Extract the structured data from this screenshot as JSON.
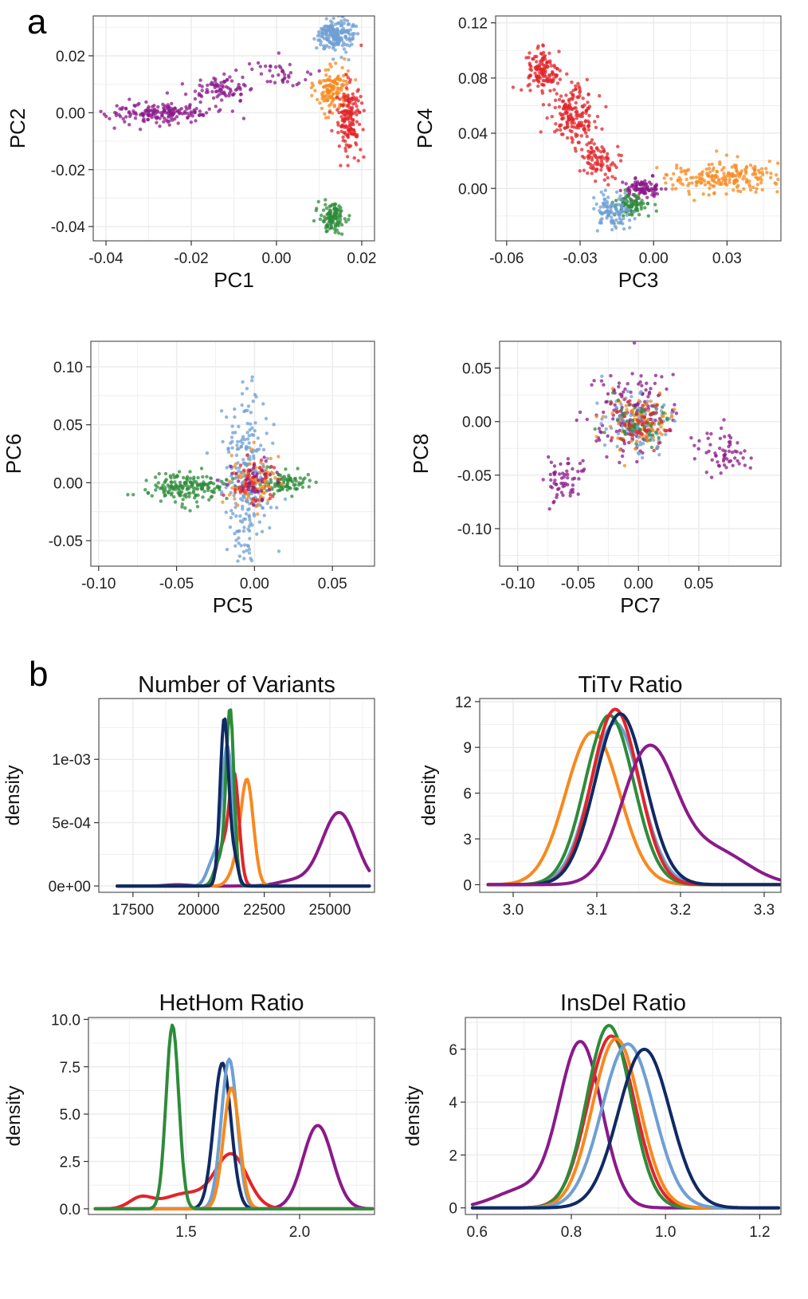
{
  "figure": {
    "panel_a_label": "a",
    "panel_b_label": "b"
  },
  "colors": {
    "purple": "#8b1a89",
    "red": "#e2242a",
    "orange": "#f7891f",
    "green": "#2e8b3a",
    "lightblue": "#6f9fd3",
    "navy": "#0f2a64",
    "grid": "#ececec",
    "panel_border": "#555555"
  },
  "chart_data": [
    {
      "id": "pc12",
      "type": "scatter",
      "title": "",
      "xlabel": "PC1",
      "ylabel": "PC2",
      "xlim": [
        -0.043,
        0.023
      ],
      "ylim": [
        -0.045,
        0.034
      ],
      "xticks": [
        -0.04,
        -0.02,
        0.0,
        0.02
      ],
      "xtick_labels": [
        "-0.04",
        "-0.02",
        "0.00",
        "0.02"
      ],
      "yticks": [
        -0.04,
        -0.02,
        0.0,
        0.02
      ],
      "ytick_labels": [
        "-0.04",
        "-0.02",
        "0.00",
        "0.02"
      ],
      "clusters": [
        {
          "color": "purple",
          "cx": -0.027,
          "cy": 0.0,
          "sx": 0.006,
          "sy": 0.002,
          "n": 180
        },
        {
          "color": "purple",
          "cx": -0.013,
          "cy": 0.008,
          "sx": 0.004,
          "sy": 0.002,
          "n": 80
        },
        {
          "color": "purple",
          "cx": 0.0,
          "cy": 0.013,
          "sx": 0.004,
          "sy": 0.003,
          "n": 40
        },
        {
          "color": "lightblue",
          "cx": 0.014,
          "cy": 0.027,
          "sx": 0.002,
          "sy": 0.003,
          "n": 200
        },
        {
          "color": "orange",
          "cx": 0.013,
          "cy": 0.008,
          "sx": 0.002,
          "sy": 0.004,
          "n": 130
        },
        {
          "color": "red",
          "cx": 0.017,
          "cy": -0.002,
          "sx": 0.0015,
          "sy": 0.006,
          "n": 160
        },
        {
          "color": "green",
          "cx": 0.013,
          "cy": -0.037,
          "sx": 0.0015,
          "sy": 0.0025,
          "n": 120
        }
      ]
    },
    {
      "id": "pc34",
      "type": "scatter",
      "title": "",
      "xlabel": "PC3",
      "ylabel": "PC4",
      "xlim": [
        -0.0645,
        0.052
      ],
      "ylim": [
        -0.038,
        0.125
      ],
      "xticks": [
        -0.06,
        -0.03,
        0.0,
        0.03
      ],
      "xtick_labels": [
        "-0.06",
        "-0.03",
        "0.00",
        "0.03"
      ],
      "yticks": [
        0.0,
        0.04,
        0.08,
        0.12
      ],
      "ytick_labels": [
        "0.00",
        "0.04",
        "0.08",
        "0.12"
      ],
      "clusters": [
        {
          "color": "red",
          "cx": -0.045,
          "cy": 0.085,
          "sx": 0.004,
          "sy": 0.008,
          "n": 130
        },
        {
          "color": "red",
          "cx": -0.033,
          "cy": 0.055,
          "sx": 0.004,
          "sy": 0.01,
          "n": 170
        },
        {
          "color": "red",
          "cx": -0.022,
          "cy": 0.02,
          "sx": 0.004,
          "sy": 0.008,
          "n": 90
        },
        {
          "color": "orange",
          "cx": 0.028,
          "cy": 0.008,
          "sx": 0.011,
          "sy": 0.005,
          "n": 200
        },
        {
          "color": "purple",
          "cx": -0.005,
          "cy": 0.0,
          "sx": 0.004,
          "sy": 0.003,
          "n": 100
        },
        {
          "color": "green",
          "cx": -0.01,
          "cy": -0.012,
          "sx": 0.004,
          "sy": 0.004,
          "n": 90
        },
        {
          "color": "lightblue",
          "cx": -0.016,
          "cy": -0.018,
          "sx": 0.004,
          "sy": 0.006,
          "n": 110
        }
      ]
    },
    {
      "id": "pc56",
      "type": "scatter",
      "title": "",
      "xlabel": "PC5",
      "ylabel": "PC6",
      "xlim": [
        -0.105,
        0.077
      ],
      "ylim": [
        -0.072,
        0.122
      ],
      "xticks": [
        -0.1,
        -0.05,
        0.0,
        0.05
      ],
      "xtick_labels": [
        "-0.10",
        "-0.05",
        "0.00",
        "0.05"
      ],
      "yticks": [
        -0.05,
        0.0,
        0.05,
        0.1
      ],
      "ytick_labels": [
        "-0.05",
        "0.00",
        "0.05",
        "0.10"
      ],
      "clusters": [
        {
          "color": "lightblue",
          "cx": -0.005,
          "cy": 0.0,
          "sx": 0.008,
          "sy": 0.035,
          "n": 260
        },
        {
          "color": "green",
          "cx": -0.045,
          "cy": -0.004,
          "sx": 0.012,
          "sy": 0.006,
          "n": 170
        },
        {
          "color": "green",
          "cx": 0.02,
          "cy": 0.0,
          "sx": 0.008,
          "sy": 0.005,
          "n": 90
        },
        {
          "color": "orange",
          "cx": 0.0,
          "cy": 0.0,
          "sx": 0.009,
          "sy": 0.012,
          "n": 90
        },
        {
          "color": "red",
          "cx": 0.0,
          "cy": 0.0,
          "sx": 0.008,
          "sy": 0.01,
          "n": 50
        },
        {
          "color": "purple",
          "cx": 0.0,
          "cy": 0.0,
          "sx": 0.008,
          "sy": 0.01,
          "n": 40
        }
      ]
    },
    {
      "id": "pc78",
      "type": "scatter",
      "title": "",
      "xlabel": "PC7",
      "ylabel": "PC8",
      "xlim": [
        -0.115,
        0.118
      ],
      "ylim": [
        -0.135,
        0.075
      ],
      "xticks": [
        -0.1,
        -0.05,
        0.0,
        0.05
      ],
      "xtick_labels": [
        "-0.10",
        "-0.05",
        "0.00",
        "0.05"
      ],
      "yticks": [
        -0.1,
        -0.05,
        0.0,
        0.05
      ],
      "ytick_labels": [
        "-0.10",
        "-0.05",
        "0.00",
        "0.05"
      ],
      "clusters": [
        {
          "color": "purple",
          "cx": -0.005,
          "cy": 0.01,
          "sx": 0.018,
          "sy": 0.02,
          "n": 140
        },
        {
          "color": "lightblue",
          "cx": 0.0,
          "cy": 0.0,
          "sx": 0.013,
          "sy": 0.012,
          "n": 120
        },
        {
          "color": "orange",
          "cx": 0.0,
          "cy": 0.0,
          "sx": 0.014,
          "sy": 0.013,
          "n": 80
        },
        {
          "color": "green",
          "cx": 0.0,
          "cy": 0.0,
          "sx": 0.012,
          "sy": 0.011,
          "n": 60
        },
        {
          "color": "red",
          "cx": 0.0,
          "cy": 0.0,
          "sx": 0.011,
          "sy": 0.011,
          "n": 50
        },
        {
          "color": "purple",
          "cx": -0.06,
          "cy": -0.055,
          "sx": 0.009,
          "sy": 0.01,
          "n": 60
        },
        {
          "color": "purple",
          "cx": 0.07,
          "cy": -0.03,
          "sx": 0.012,
          "sy": 0.01,
          "n": 60
        }
      ]
    },
    {
      "id": "variants",
      "type": "line",
      "title": "Number of Variants",
      "xlabel": "",
      "ylabel": "density",
      "xlim": [
        16200,
        26700
      ],
      "ylim": [
        -5e-05,
        0.00148
      ],
      "xticks": [
        17500,
        20000,
        22500,
        25000
      ],
      "xtick_labels": [
        "17500",
        "20000",
        "22500",
        "25000"
      ],
      "yticks": [
        0.0,
        0.0005,
        0.001
      ],
      "ytick_labels": [
        "0e+00",
        "5e-04",
        "1e-03"
      ],
      "x_range": [
        16900,
        26500
      ],
      "series": [
        {
          "color": "purple",
          "peaks": [
            [
              25350,
              0.00058,
              650
            ],
            [
              23600,
              4e-05,
              600
            ],
            [
              19200,
              1e-05,
              400
            ]
          ]
        },
        {
          "color": "orange",
          "peaks": [
            [
              21850,
              0.00082,
              240
            ],
            [
              21400,
              0.00012,
              250
            ]
          ]
        },
        {
          "color": "red",
          "peaks": [
            [
              21350,
              0.00088,
              190
            ],
            [
              20900,
              0.00028,
              200
            ]
          ]
        },
        {
          "color": "lightblue",
          "peaks": [
            [
              21100,
              0.00108,
              200
            ],
            [
              20600,
              0.00022,
              250
            ]
          ]
        },
        {
          "color": "green",
          "peaks": [
            [
              21200,
              0.00138,
              150
            ],
            [
              20800,
              0.0002,
              200
            ]
          ]
        },
        {
          "color": "navy",
          "peaks": [
            [
              20980,
              0.00132,
              160
            ],
            [
              21350,
              0.00022,
              150
            ]
          ]
        }
      ]
    },
    {
      "id": "titv",
      "type": "line",
      "title": "TiTv Ratio",
      "xlabel": "",
      "ylabel": "density",
      "xlim": [
        2.96,
        3.32
      ],
      "ylim": [
        -0.5,
        12.2
      ],
      "xticks": [
        3.0,
        3.1,
        3.2,
        3.3
      ],
      "xtick_labels": [
        "3.0",
        "3.1",
        "3.2",
        "3.3"
      ],
      "yticks": [
        0,
        3,
        6,
        9,
        12
      ],
      "ytick_labels": [
        "0",
        "3",
        "6",
        "9",
        "12"
      ],
      "x_range": [
        2.97,
        3.32
      ],
      "series": [
        {
          "color": "orange",
          "peaks": [
            [
              3.095,
              10.0,
              0.032
            ]
          ]
        },
        {
          "color": "lightblue",
          "peaks": [
            [
              3.122,
              10.6,
              0.03
            ]
          ]
        },
        {
          "color": "green",
          "peaks": [
            [
              3.115,
              11.1,
              0.029
            ]
          ]
        },
        {
          "color": "red",
          "peaks": [
            [
              3.122,
              11.5,
              0.028
            ]
          ]
        },
        {
          "color": "navy",
          "peaks": [
            [
              3.128,
              11.2,
              0.03
            ]
          ]
        },
        {
          "color": "purple",
          "peaks": [
            [
              3.162,
              8.8,
              0.032
            ],
            [
              3.24,
              2.2,
              0.04
            ]
          ]
        }
      ]
    },
    {
      "id": "hethom",
      "type": "line",
      "title": "HetHom Ratio",
      "xlabel": "",
      "ylabel": "density",
      "xlim": [
        1.07,
        2.33
      ],
      "ylim": [
        -0.3,
        10.1
      ],
      "xticks": [
        1.5,
        2.0
      ],
      "xtick_labels": [
        "1.5",
        "2.0"
      ],
      "yticks": [
        0.0,
        2.5,
        5.0,
        7.5,
        10.0
      ],
      "ytick_labels": [
        "0.0",
        "2.5",
        "5.0",
        "7.5",
        "10.0"
      ],
      "x_range": [
        1.1,
        2.32
      ],
      "series": [
        {
          "color": "purple",
          "peaks": [
            [
              2.08,
              4.4,
              0.065
            ]
          ]
        },
        {
          "color": "red",
          "peaks": [
            [
              1.7,
              2.8,
              0.07
            ],
            [
              1.5,
              0.8,
              0.1
            ],
            [
              1.3,
              0.55,
              0.05
            ]
          ]
        },
        {
          "color": "navy",
          "peaks": [
            [
              1.66,
              7.7,
              0.038
            ]
          ]
        },
        {
          "color": "lightblue",
          "peaks": [
            [
              1.69,
              7.9,
              0.035
            ]
          ]
        },
        {
          "color": "orange",
          "peaks": [
            [
              1.7,
              6.4,
              0.035
            ]
          ]
        },
        {
          "color": "green",
          "peaks": [
            [
              1.44,
              9.7,
              0.028
            ]
          ]
        }
      ]
    },
    {
      "id": "insdel",
      "type": "line",
      "title": "InsDel Ratio",
      "xlabel": "",
      "ylabel": "density",
      "xlim": [
        0.575,
        1.245
      ],
      "ylim": [
        -0.25,
        7.2
      ],
      "xticks": [
        0.6,
        0.8,
        1.0,
        1.2
      ],
      "xtick_labels": [
        "0.6",
        "0.8",
        "1.0",
        "1.2"
      ],
      "yticks": [
        0,
        2,
        4,
        6
      ],
      "ytick_labels": [
        "0",
        "2",
        "4",
        "6"
      ],
      "x_range": [
        0.59,
        1.24
      ],
      "series": [
        {
          "color": "purple",
          "peaks": [
            [
              0.82,
              6.2,
              0.045
            ],
            [
              0.7,
              0.7,
              0.06
            ]
          ]
        },
        {
          "color": "red",
          "peaks": [
            [
              0.885,
              6.5,
              0.05
            ]
          ]
        },
        {
          "color": "green",
          "peaks": [
            [
              0.88,
              6.9,
              0.047
            ]
          ]
        },
        {
          "color": "orange",
          "peaks": [
            [
              0.895,
              6.4,
              0.05
            ]
          ]
        },
        {
          "color": "lightblue",
          "peaks": [
            [
              0.92,
              6.2,
              0.055
            ]
          ]
        },
        {
          "color": "navy",
          "peaks": [
            [
              0.955,
              6.0,
              0.055
            ]
          ]
        }
      ]
    }
  ]
}
